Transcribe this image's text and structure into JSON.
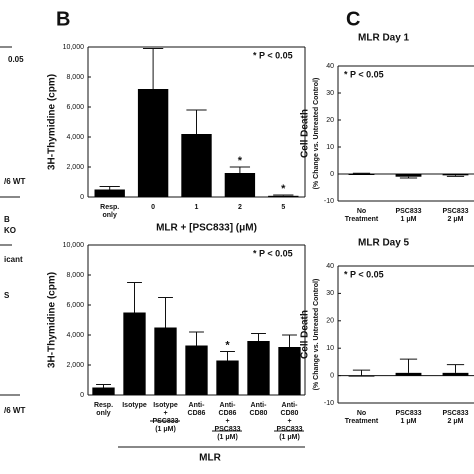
{
  "panel_a_fragments": [
    "0.05",
    "/6 WT",
    "B",
    "KO",
    "icant",
    "S",
    "/6 WT"
  ],
  "chart_data": [
    {
      "type": "bar",
      "panel": "B",
      "ylabel": "3H-Thymidine (cpm)",
      "xlabel": "MLR + [PSC833] (μM)",
      "annotation": "* P < 0.05",
      "categories": [
        "Resp.\nonly",
        "0",
        "1",
        "2",
        "5"
      ],
      "values": [
        500,
        7200,
        4200,
        1600,
        80
      ],
      "errors": [
        200,
        2700,
        1600,
        400,
        50
      ],
      "value_labels": [
        null,
        null,
        null,
        "*",
        "*"
      ],
      "color": "#000000",
      "ylim": [
        0,
        10000
      ],
      "yticks": [
        0,
        {
          "value": 2000,
          "label": "2,000"
        },
        {
          "value": 4000,
          "label": "4,000"
        },
        {
          "value": 6000,
          "label": "6,000"
        },
        {
          "value": 8000,
          "label": "8,000"
        },
        {
          "value": 10000,
          "label": "10,000"
        }
      ]
    },
    {
      "type": "bar",
      "ylabel": "3H-Thymidine (cpm)",
      "xlabel": "MLR",
      "annotation": "* P < 0.05",
      "categories": [
        "Resp.\nonly",
        "Isotype",
        "Isotype\n+\nPSC833\n(1 μM)",
        "Anti-\nCD86",
        "Anti-\nCD86\n+\nPSC833\n(1 μM)",
        "Anti-\nCD80",
        "Anti-\nCD80\n+\nPSC833\n(1 μM)"
      ],
      "values": [
        500,
        5500,
        4500,
        3300,
        2300,
        3600,
        3200
      ],
      "errors": [
        200,
        2000,
        2000,
        900,
        600,
        500,
        800
      ],
      "value_labels": [
        null,
        null,
        null,
        null,
        "*",
        null,
        null
      ],
      "color": "#000000",
      "ylim": [
        0,
        10000
      ],
      "yticks": [
        0,
        {
          "value": 2000,
          "label": "2,000"
        },
        {
          "value": 4000,
          "label": "4,000"
        },
        {
          "value": 6000,
          "label": "6,000"
        },
        {
          "value": 8000,
          "label": "8,000"
        },
        {
          "value": 10000,
          "label": "10,000"
        }
      ]
    },
    {
      "type": "bar",
      "panel": "C",
      "title": "MLR Day 1",
      "ylabel": "Cell Death",
      "ylabel2": "(% Change vs. Untreated Control)",
      "annotation": "* P < 0.05",
      "categories": [
        "No\nTreatment",
        "PSC833\n1 μM",
        "PSC833\n2 μM"
      ],
      "values": [
        0,
        -1,
        -0.5
      ],
      "errors": [
        0.3,
        0.5,
        0.4
      ],
      "color": "#000000",
      "ylim": [
        -10,
        40
      ],
      "yticks": [
        -10,
        0,
        10,
        20,
        30,
        40
      ]
    },
    {
      "type": "bar",
      "title": "MLR Day 5",
      "ylabel": "Cell Death",
      "ylabel2": "(% Change vs. Untreated Control)",
      "annotation": "* P < 0.05",
      "categories": [
        "No\nTreatment",
        "PSC833\n1 μM",
        "PSC833\n2 μM"
      ],
      "values": [
        0,
        1,
        1
      ],
      "errors": [
        2,
        5,
        3
      ],
      "color": "#000000",
      "ylim": [
        -10,
        40
      ],
      "yticks": [
        -10,
        0,
        10,
        20,
        30,
        40
      ]
    }
  ]
}
